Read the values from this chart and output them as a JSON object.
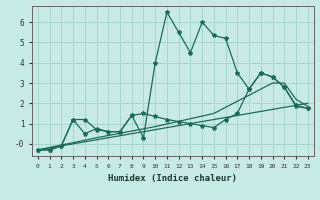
{
  "xlabel": "Humidex (Indice chaleur)",
  "background_color": "#c8eae5",
  "grid_color": "#a8d5cc",
  "line_color": "#1a6b5a",
  "xlim": [
    -0.5,
    23.5
  ],
  "ylim": [
    -0.6,
    6.8
  ],
  "xticks": [
    0,
    1,
    2,
    3,
    4,
    5,
    6,
    7,
    8,
    9,
    10,
    11,
    12,
    13,
    14,
    15,
    16,
    17,
    18,
    19,
    20,
    21,
    22,
    23
  ],
  "yticks": [
    0,
    1,
    2,
    3,
    4,
    5,
    6
  ],
  "ytick_labels": [
    "-0",
    "1",
    "2",
    "3",
    "4",
    "5",
    "6"
  ],
  "series": [
    {
      "x": [
        0,
        23
      ],
      "y": [
        -0.3,
        2.0
      ],
      "style": "line_only",
      "lw": 0.9
    },
    {
      "x": [
        0,
        5,
        10,
        15,
        19,
        20,
        21,
        22,
        23
      ],
      "y": [
        -0.3,
        0.3,
        0.85,
        1.5,
        2.7,
        3.0,
        3.0,
        2.2,
        1.85
      ],
      "style": "line_only",
      "lw": 0.9
    },
    {
      "x": [
        0,
        1,
        2,
        3,
        4,
        5,
        6,
        7,
        8,
        9,
        10,
        11,
        12,
        13,
        14,
        15,
        16,
        17,
        18,
        19,
        20,
        21,
        22,
        23
      ],
      "y": [
        -0.3,
        -0.3,
        -0.1,
        1.2,
        1.2,
        0.7,
        0.6,
        0.6,
        1.4,
        1.5,
        1.35,
        1.2,
        1.1,
        1.0,
        0.9,
        0.8,
        1.2,
        1.5,
        2.7,
        3.5,
        3.3,
        2.8,
        1.85,
        1.75
      ],
      "style": "line_marker",
      "lw": 0.9
    },
    {
      "x": [
        0,
        1,
        2,
        3,
        4,
        5,
        6,
        7,
        8,
        9,
        10,
        11,
        12,
        13,
        14,
        15,
        16,
        17,
        18,
        19,
        20,
        21,
        22,
        23
      ],
      "y": [
        -0.3,
        -0.3,
        -0.1,
        1.2,
        0.5,
        0.75,
        0.6,
        0.6,
        1.4,
        0.3,
        4.0,
        6.5,
        5.5,
        4.5,
        6.0,
        5.35,
        5.2,
        3.5,
        2.7,
        3.5,
        3.3,
        2.8,
        1.9,
        1.75
      ],
      "style": "line_marker",
      "lw": 0.9
    }
  ]
}
